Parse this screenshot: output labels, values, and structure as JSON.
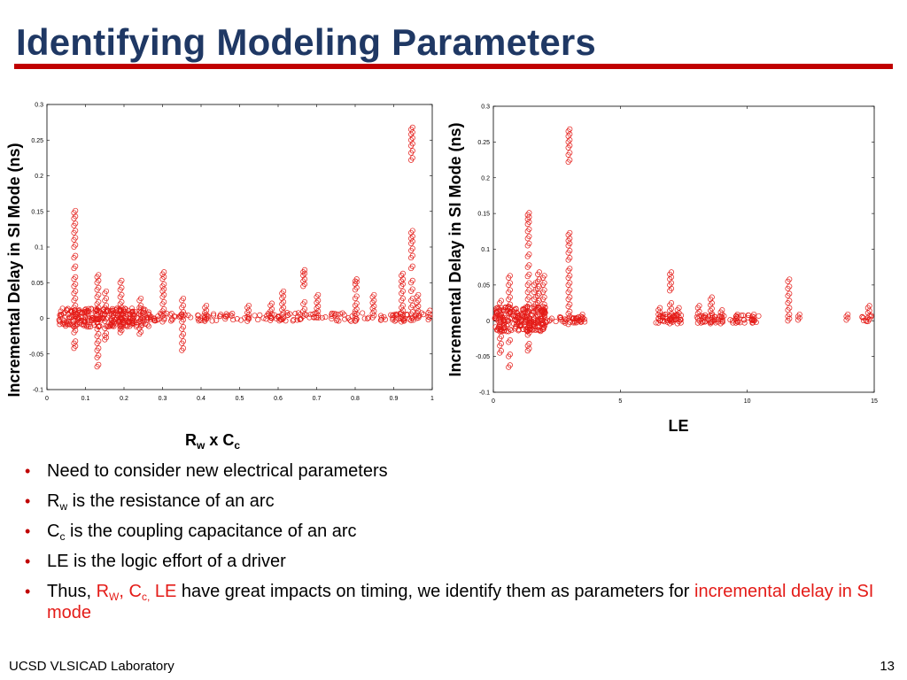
{
  "slide": {
    "title": "Identifying Modeling Parameters",
    "footer": "UCSD VLSICAD Laboratory",
    "page_number": "13"
  },
  "colors": {
    "title": "#1f3864",
    "accent": "#c00000",
    "marker": "#e41b17"
  },
  "bullets": {
    "b1": "Need to consider new electrical parameters",
    "b2": {
      "main": "R",
      "sub": "w",
      "rest": " is the resistance of an arc"
    },
    "b3": {
      "main": "C",
      "sub": "c",
      "rest": " is the coupling capacitance of an arc"
    },
    "b4": "LE is the logic effort of a driver",
    "b5": {
      "prefix": "Thus, ",
      "rw_main": "R",
      "rw_sub": "W",
      "sep1": ", ",
      "cc_main": "C",
      "cc_sub": "c,",
      "le": " LE",
      "mid": " have great impacts on timing, we identify them as parameters for ",
      "highlight": "incremental delay in SI mode"
    }
  },
  "chart_data": [
    {
      "type": "scatter",
      "ylabel": "Incremental Delay in SI Mode (ns)",
      "xlabel": {
        "main": "R",
        "sub1": "w",
        "mid": " x C",
        "sub2": "c"
      },
      "xlim": [
        0,
        1
      ],
      "ylim": [
        -0.1,
        0.3
      ],
      "xticks": [
        0,
        0.1,
        0.2,
        0.3,
        0.4,
        0.5,
        0.6,
        0.7,
        0.8,
        0.9,
        1
      ],
      "xtick_labels": [
        "0",
        "0.1",
        "0.2",
        "0.3",
        "0.4",
        "0.5",
        "0.6",
        "0.7",
        "0.8",
        "0.9",
        "1"
      ],
      "yticks": [
        -0.1,
        -0.05,
        0,
        0.05,
        0.1,
        0.15,
        0.2,
        0.25,
        0.3
      ],
      "ytick_labels": [
        "-0.1",
        "-0.05",
        "0",
        "0.05",
        "0.1",
        "0.15",
        "0.2",
        "0.25",
        "0.3"
      ],
      "marker": "open-circle",
      "color": "#e41b17",
      "columns": [
        {
          "x": 0.07,
          "ys": [
            0.148,
            0.14,
            0.13,
            0.12,
            0.11,
            0.1,
            0.085,
            0.07,
            0.055,
            0.045,
            0.035,
            0.025,
            0.015,
            0.008,
            0.003,
            -0.004,
            -0.012,
            -0.02,
            -0.035,
            -0.042
          ]
        },
        {
          "x": 0.13,
          "ys": [
            0.058,
            0.05,
            0.04,
            0.03,
            0.02,
            0.012,
            0.005,
            -0.005,
            -0.015,
            -0.025,
            -0.035,
            -0.045,
            -0.055,
            -0.068
          ]
        },
        {
          "x": 0.15,
          "ys": [
            0.035,
            0.025,
            0.015,
            0.006,
            -0.004,
            -0.014,
            -0.024,
            -0.03
          ]
        },
        {
          "x": 0.19,
          "ys": [
            0.05,
            0.04,
            0.03,
            0.02,
            0.012,
            0.004,
            -0.005,
            -0.015,
            -0.02
          ]
        },
        {
          "x": 0.24,
          "ys": [
            0.025,
            0.015,
            0.006,
            -0.004,
            -0.014,
            -0.022
          ]
        },
        {
          "x": 0.3,
          "ys": [
            0.062,
            0.055,
            0.045,
            0.038,
            0.03,
            0.02,
            0.01,
            0.003,
            -0.005
          ]
        },
        {
          "x": 0.35,
          "ys": [
            0.025,
            0.015,
            0.006,
            -0.005,
            -0.015,
            -0.025,
            -0.035,
            -0.045
          ]
        },
        {
          "x": 0.41,
          "ys": [
            0.015,
            0.008,
            0.002,
            -0.004
          ]
        },
        {
          "x": 0.52,
          "ys": [
            0.015,
            0.008,
            0.002,
            -0.004
          ]
        },
        {
          "x": 0.58,
          "ys": [
            0.018,
            0.01,
            0.003,
            -0.003
          ]
        },
        {
          "x": 0.61,
          "ys": [
            0.035,
            0.028,
            0.02,
            0.012,
            0.005,
            -0.002
          ]
        },
        {
          "x": 0.665,
          "ys": [
            0.065,
            0.06,
            0.052,
            0.045,
            0.02,
            0.01,
            0.003
          ]
        },
        {
          "x": 0.7,
          "ys": [
            0.03,
            0.022,
            0.014,
            0.007,
            0.001
          ]
        },
        {
          "x": 0.8,
          "ys": [
            0.052,
            0.048,
            0.04,
            0.028,
            0.018,
            0.01,
            0.003,
            -0.004
          ]
        },
        {
          "x": 0.845,
          "ys": [
            0.03,
            0.022,
            0.014,
            0.007,
            0.001
          ]
        },
        {
          "x": 0.92,
          "ys": [
            0.06,
            0.052,
            0.045,
            0.035,
            0.025,
            0.015,
            0.008,
            0.002,
            -0.005
          ]
        },
        {
          "x": 0.945,
          "ys": [
            0.265,
            0.258,
            0.25,
            0.242,
            0.232,
            0.222,
            0.12,
            0.112,
            0.105,
            0.095,
            0.085,
            0.07,
            0.05,
            0.038,
            0.025,
            0.015,
            0.006,
            -0.003
          ]
        },
        {
          "x": 0.96,
          "ys": [
            0.03,
            0.022,
            0.014,
            0.007,
            0.0
          ]
        },
        {
          "x": 0.99,
          "ys": [
            0.008,
            0.002,
            -0.002
          ]
        }
      ],
      "bands": [
        {
          "x_from": 0.03,
          "x_to": 0.27,
          "y_from": -0.012,
          "y_to": 0.014,
          "count": 280
        },
        {
          "x_from": 0.27,
          "x_to": 0.98,
          "y_from": -0.004,
          "y_to": 0.008,
          "count": 170
        }
      ]
    },
    {
      "type": "scatter",
      "ylabel": "Incremental Delay in SI Mode (ns)",
      "xlabel": "LE",
      "xlim": [
        0,
        15
      ],
      "ylim": [
        -0.1,
        0.3
      ],
      "xticks": [
        0,
        5,
        10,
        15
      ],
      "xtick_labels": [
        "0",
        "5",
        "10",
        "15"
      ],
      "yticks": [
        -0.1,
        -0.05,
        0,
        0.05,
        0.1,
        0.15,
        0.2,
        0.25,
        0.3
      ],
      "ytick_labels": [
        "-0.1",
        "-0.05",
        "0",
        "0.05",
        "0.1",
        "0.15",
        "0.2",
        "0.25",
        "0.3"
      ],
      "marker": "open-circle",
      "color": "#e41b17",
      "columns": [
        {
          "x": 0.25,
          "ys": [
            0.025,
            0.015,
            0.005,
            -0.005,
            -0.015,
            -0.025,
            -0.035,
            -0.045
          ]
        },
        {
          "x": 0.6,
          "ys": [
            0.06,
            0.05,
            0.04,
            0.03,
            0.02,
            0.01,
            0.0,
            -0.015,
            -0.03,
            -0.05,
            -0.065
          ]
        },
        {
          "x": 1.35,
          "ys": [
            0.148,
            0.142,
            0.135,
            0.125,
            0.115,
            0.105,
            0.09,
            0.075,
            0.062,
            0.05,
            0.04,
            0.03,
            0.02,
            0.01,
            0.0,
            -0.01,
            -0.02,
            -0.035,
            -0.042
          ]
        },
        {
          "x": 1.6,
          "ys": [
            0.05,
            0.04,
            0.03,
            0.02,
            0.012,
            0.004,
            -0.006
          ]
        },
        {
          "x": 1.75,
          "ys": [
            0.065,
            0.055,
            0.045,
            0.035,
            0.025,
            0.015,
            0.006
          ]
        },
        {
          "x": 1.95,
          "ys": [
            0.06,
            0.05,
            0.04,
            0.03,
            0.02,
            0.012,
            0.004
          ]
        },
        {
          "x": 2.95,
          "ys": [
            0.265,
            0.258,
            0.25,
            0.242,
            0.232,
            0.222,
            0.12,
            0.112,
            0.105,
            0.095,
            0.085,
            0.07,
            0.06,
            0.05,
            0.04,
            0.03,
            0.02,
            0.01,
            0.003,
            -0.005
          ]
        },
        {
          "x": 3.45,
          "ys": [
            0.006,
            0.002,
            -0.002
          ]
        },
        {
          "x": 6.5,
          "ys": [
            0.015,
            0.009,
            0.003,
            -0.003
          ]
        },
        {
          "x": 6.95,
          "ys": [
            0.065,
            0.058,
            0.05,
            0.042,
            0.022,
            0.014,
            0.007,
            0.001,
            -0.004
          ]
        },
        {
          "x": 7.25,
          "ys": [
            0.015,
            0.008,
            0.002,
            -0.004
          ]
        },
        {
          "x": 8.05,
          "ys": [
            0.018,
            0.01,
            0.003,
            -0.003
          ]
        },
        {
          "x": 8.55,
          "ys": [
            0.03,
            0.022,
            0.014,
            0.007,
            0.001,
            -0.004
          ]
        },
        {
          "x": 8.95,
          "ys": [
            0.012,
            0.006,
            0.001,
            -0.004
          ]
        },
        {
          "x": 9.55,
          "ys": [
            0.006,
            0.002,
            -0.003
          ]
        },
        {
          "x": 10.2,
          "ys": [
            0.006,
            0.002,
            -0.003
          ]
        },
        {
          "x": 11.6,
          "ys": [
            0.055,
            0.045,
            0.035,
            0.025,
            0.015,
            0.006,
            0.0
          ]
        },
        {
          "x": 12.0,
          "ys": [
            0.006,
            0.001
          ]
        },
        {
          "x": 13.9,
          "ys": [
            0.006,
            0.001
          ]
        },
        {
          "x": 14.75,
          "ys": [
            0.018,
            0.011,
            0.004,
            -0.001
          ]
        }
      ],
      "bands": [
        {
          "x_from": 0.05,
          "x_to": 2.1,
          "y_from": -0.015,
          "y_to": 0.02,
          "count": 230
        },
        {
          "x_from": 2.1,
          "x_to": 3.6,
          "y_from": -0.003,
          "y_to": 0.006,
          "count": 35
        },
        {
          "x_from": 6.4,
          "x_to": 7.4,
          "y_from": -0.003,
          "y_to": 0.01,
          "count": 40
        },
        {
          "x_from": 7.9,
          "x_to": 10.5,
          "y_from": -0.003,
          "y_to": 0.008,
          "count": 55
        },
        {
          "x_from": 14.5,
          "x_to": 14.9,
          "y_from": -0.002,
          "y_to": 0.008,
          "count": 8
        }
      ]
    }
  ]
}
